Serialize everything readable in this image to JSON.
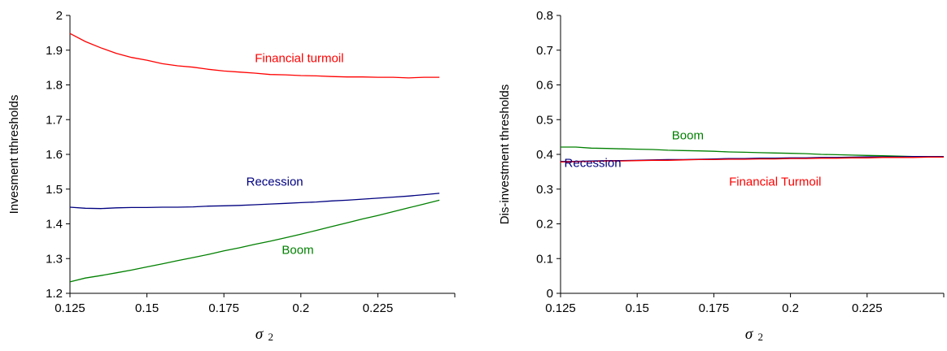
{
  "chart_data": [
    {
      "type": "line",
      "ylabel": "Invesment tthresholds",
      "xlabel": "σ",
      "xlabel_sub": "2",
      "xlim": [
        0.125,
        0.25
      ],
      "ylim": [
        1.2,
        2.0
      ],
      "xticks": [
        "0.125",
        "0.15",
        "0.175",
        "0.2",
        "0.225"
      ],
      "yticks": [
        "1.2",
        "1.3",
        "1.4",
        "1.5",
        "1.6",
        "1.7",
        "1.8",
        "1.9",
        "2"
      ],
      "grid": false,
      "x": [
        0.125,
        0.13,
        0.135,
        0.14,
        0.145,
        0.15,
        0.155,
        0.16,
        0.165,
        0.17,
        0.175,
        0.18,
        0.185,
        0.19,
        0.195,
        0.2,
        0.205,
        0.21,
        0.215,
        0.22,
        0.225,
        0.23,
        0.235,
        0.24,
        0.245
      ],
      "series": [
        {
          "label": "Financial turmoil",
          "color": "#ff0000",
          "values": [
            1.948,
            1.925,
            1.907,
            1.891,
            1.879,
            1.871,
            1.861,
            1.855,
            1.851,
            1.845,
            1.84,
            1.837,
            1.834,
            1.83,
            1.829,
            1.827,
            1.826,
            1.824,
            1.823,
            1.823,
            1.822,
            1.822,
            1.82,
            1.822,
            1.822
          ]
        },
        {
          "label": "Recession",
          "color": "#000080",
          "values": [
            1.448,
            1.445,
            1.444,
            1.446,
            1.447,
            1.447,
            1.448,
            1.448,
            1.449,
            1.451,
            1.452,
            1.453,
            1.455,
            1.457,
            1.459,
            1.461,
            1.463,
            1.466,
            1.468,
            1.471,
            1.474,
            1.477,
            1.48,
            1.484,
            1.488
          ]
        },
        {
          "label": "Boom",
          "color": "#008000",
          "values": [
            1.233,
            1.244,
            1.251,
            1.259,
            1.267,
            1.276,
            1.285,
            1.294,
            1.303,
            1.312,
            1.322,
            1.331,
            1.341,
            1.35,
            1.36,
            1.37,
            1.381,
            1.392,
            1.403,
            1.414,
            1.424,
            1.435,
            1.446,
            1.457,
            1.468
          ]
        }
      ],
      "annotations": [
        {
          "text": "Financial turmoil",
          "color": "#ff0000",
          "x": 0.1995,
          "y": 1.877
        },
        {
          "text": "Recession",
          "color": "#000080",
          "x": 0.1915,
          "y": 1.522
        },
        {
          "text": "Boom",
          "color": "#008000",
          "x": 0.199,
          "y": 1.325
        }
      ]
    },
    {
      "type": "line",
      "ylabel": "Dis-investment thresholds",
      "xlabel": "σ",
      "xlabel_sub": "2",
      "xlim": [
        0.125,
        0.25
      ],
      "ylim": [
        0,
        0.8
      ],
      "xticks": [
        "0.125",
        "0.15",
        "0.175",
        "0.2",
        "0.225"
      ],
      "yticks": [
        "0",
        "0.1",
        "0.2",
        "0.3",
        "0.4",
        "0.5",
        "0.6",
        "0.7",
        "0.8"
      ],
      "grid": false,
      "x": [
        0.125,
        0.13,
        0.135,
        0.14,
        0.145,
        0.15,
        0.155,
        0.16,
        0.165,
        0.17,
        0.175,
        0.18,
        0.185,
        0.19,
        0.195,
        0.2,
        0.205,
        0.21,
        0.215,
        0.22,
        0.225,
        0.23,
        0.235,
        0.24,
        0.245,
        0.25
      ],
      "series": [
        {
          "label": "Boom",
          "color": "#008000",
          "values": [
            0.421,
            0.421,
            0.418,
            0.417,
            0.416,
            0.415,
            0.414,
            0.412,
            0.411,
            0.41,
            0.409,
            0.407,
            0.406,
            0.405,
            0.404,
            0.403,
            0.402,
            0.4,
            0.399,
            0.398,
            0.397,
            0.396,
            0.395,
            0.394,
            0.393,
            0.392
          ]
        },
        {
          "label": "Recession",
          "color": "#000080",
          "values": [
            0.38,
            0.38,
            0.381,
            0.382,
            0.382,
            0.383,
            0.384,
            0.385,
            0.385,
            0.386,
            0.387,
            0.388,
            0.388,
            0.389,
            0.389,
            0.39,
            0.39,
            0.391,
            0.391,
            0.392,
            0.393,
            0.393,
            0.393,
            0.394,
            0.394,
            0.394
          ]
        },
        {
          "label": "Financial Turmoil",
          "color": "#ff0000",
          "values": [
            0.378,
            0.379,
            0.38,
            0.381,
            0.381,
            0.382,
            0.383,
            0.383,
            0.384,
            0.385,
            0.385,
            0.386,
            0.386,
            0.387,
            0.387,
            0.388,
            0.388,
            0.389,
            0.389,
            0.39,
            0.39,
            0.391,
            0.391,
            0.391,
            0.392,
            0.392
          ]
        }
      ],
      "annotations": [
        {
          "text": "Boom",
          "color": "#008000",
          "x": 0.1665,
          "y": 0.455
        },
        {
          "text": "Recession",
          "color": "#000080",
          "x": 0.1355,
          "y": 0.375
        },
        {
          "text": "Financial Turmoil",
          "color": "#ff0000",
          "x": 0.195,
          "y": 0.322
        }
      ]
    }
  ]
}
